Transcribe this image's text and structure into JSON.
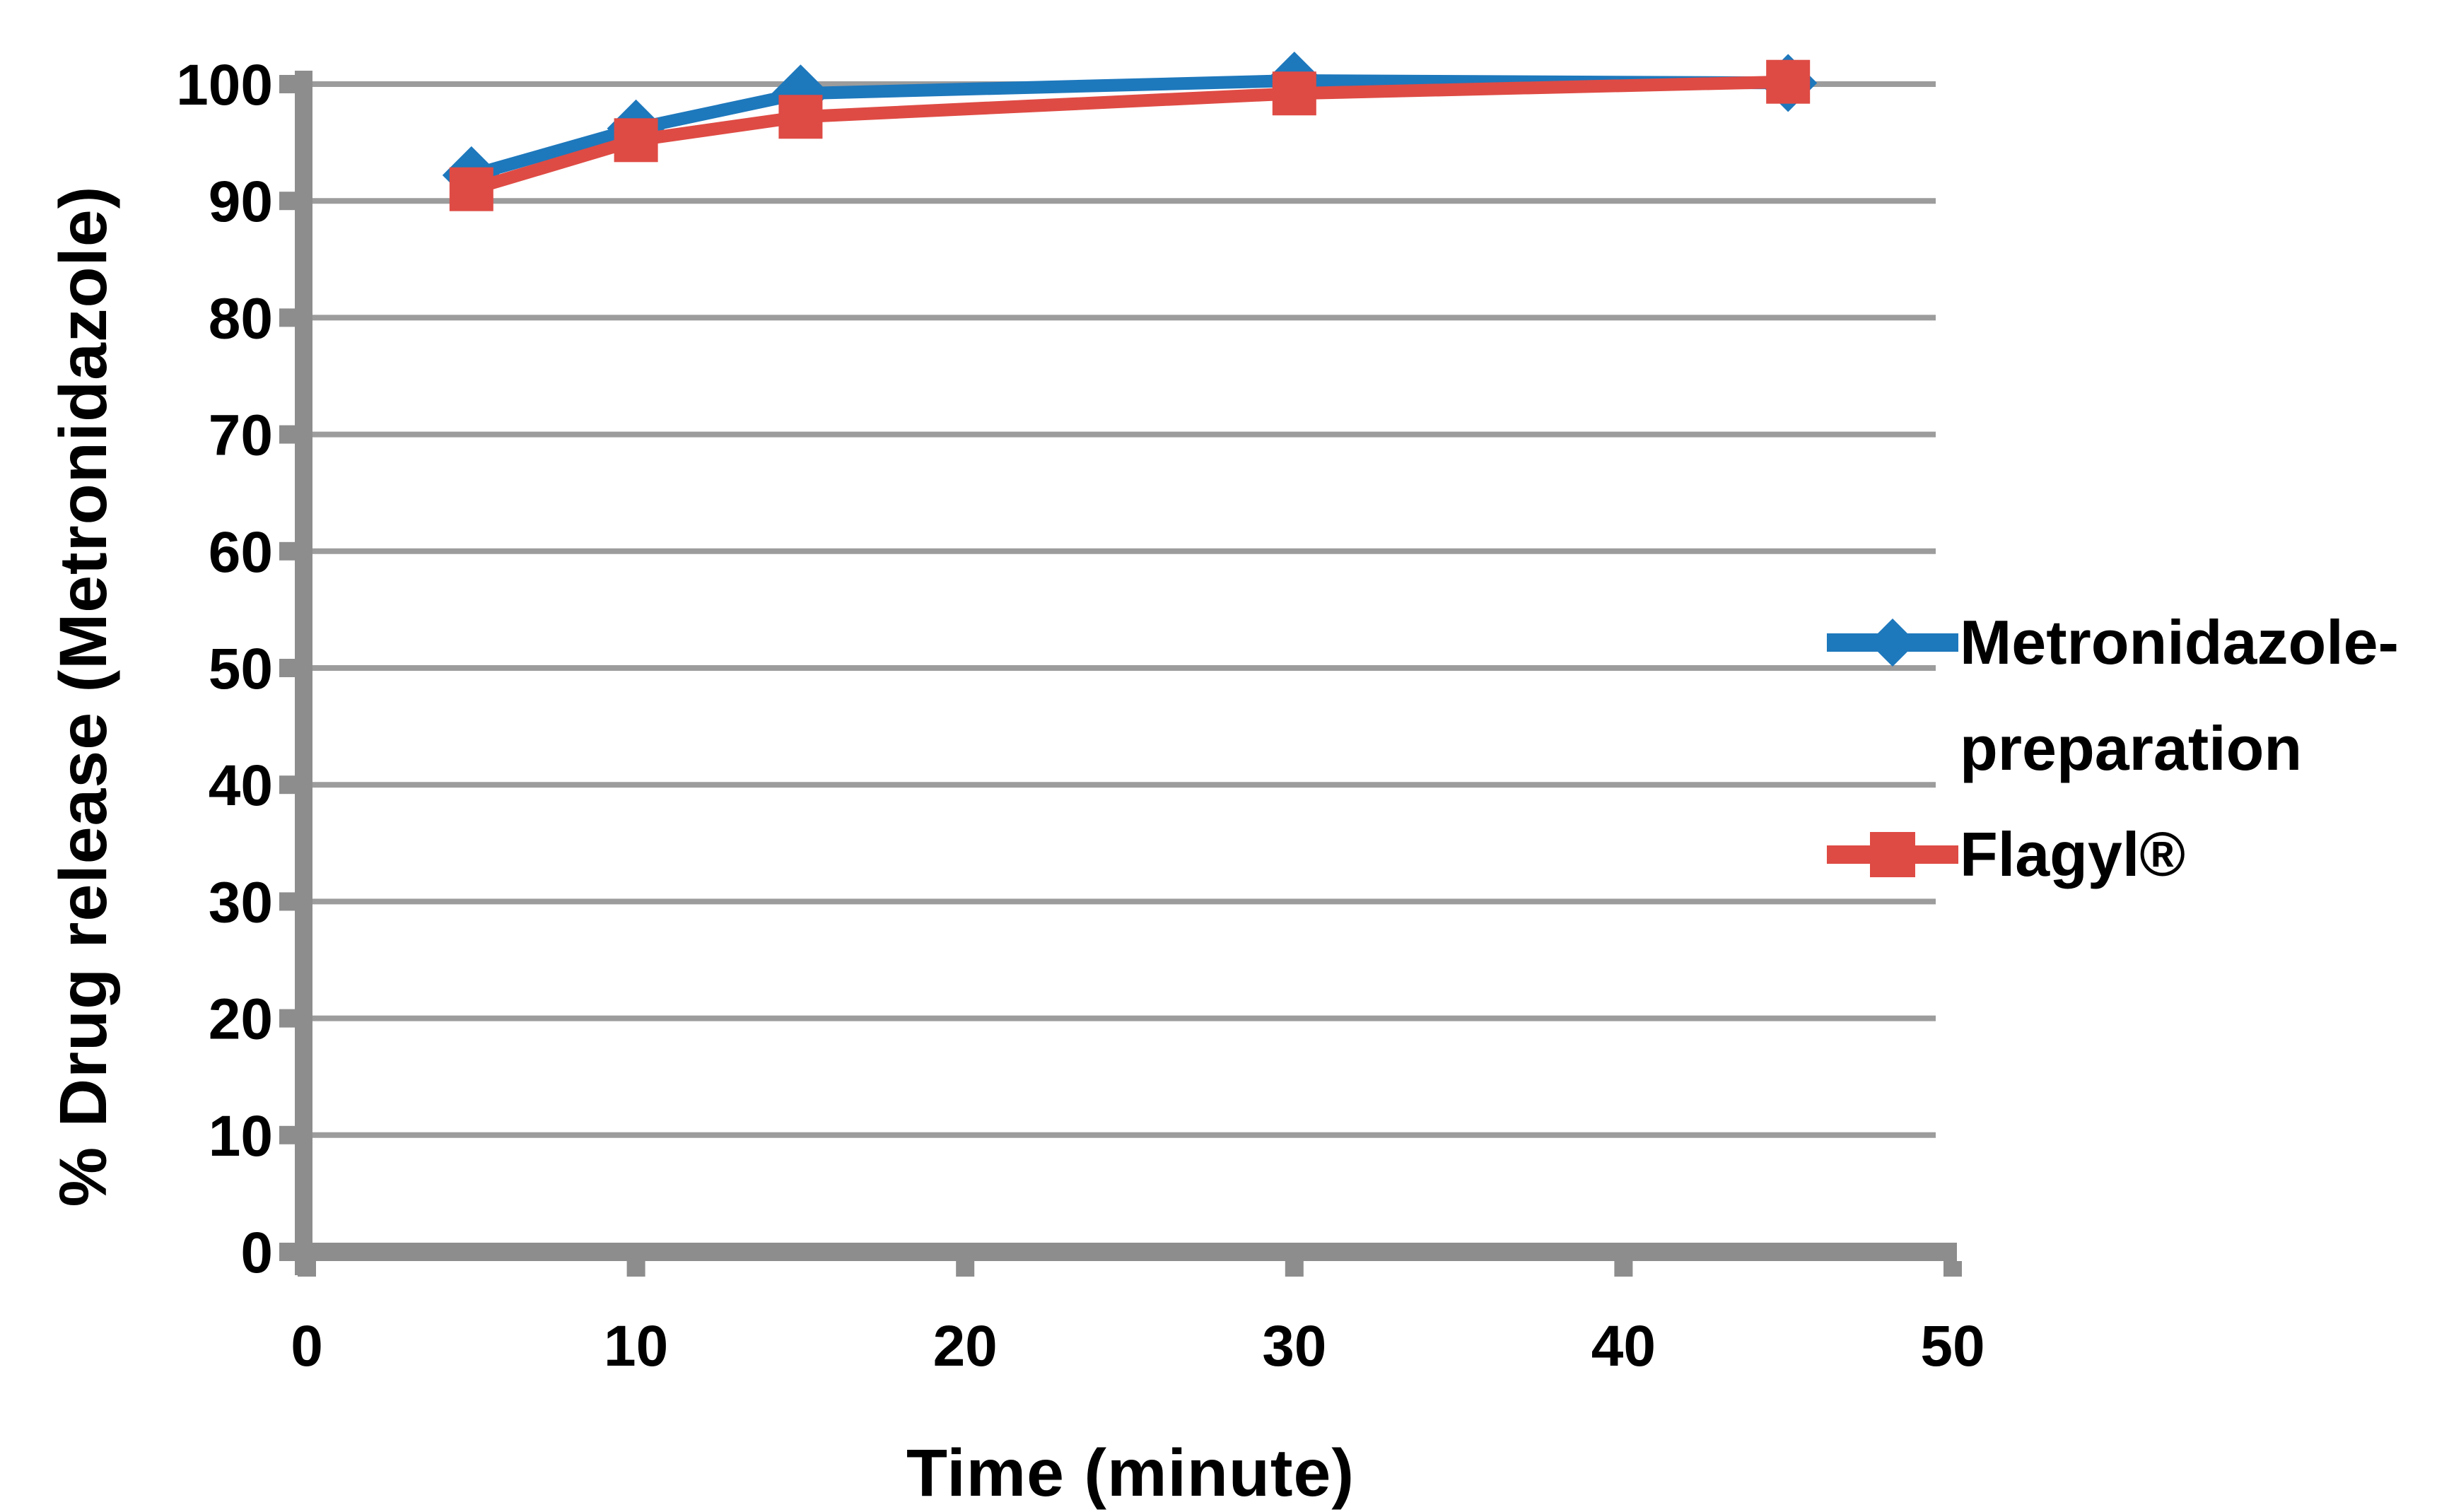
{
  "chart_data": {
    "type": "line",
    "title": "",
    "xlabel": "Time (minute)",
    "ylabel": "% Drug release (Metronidazole)",
    "x": [
      5,
      10,
      15,
      30,
      45
    ],
    "series": [
      {
        "name": "Metronidazole-preparation",
        "label": "Metronidazole-\npreparation",
        "marker": "diamond",
        "color": "#1E78BC",
        "values": [
          92.2,
          96.2,
          99.2,
          100.3,
          100.1
        ]
      },
      {
        "name": "Flagyl®",
        "label": "Flagyl®",
        "marker": "square",
        "color": "#DE4B44",
        "values": [
          91.0,
          95.2,
          97.2,
          99.2,
          100.2
        ]
      }
    ],
    "xlim": [
      0,
      50
    ],
    "ylim": [
      0,
      100
    ],
    "xticks": [
      0,
      10,
      20,
      30,
      40,
      50
    ],
    "yticks": [
      0,
      10,
      20,
      30,
      40,
      50,
      60,
      70,
      80,
      90,
      100
    ],
    "grid": true,
    "legend_position": "right-middle",
    "gridline_color": "#9C9C9C",
    "axis_color": "#8D8D8D",
    "text_color": "#000000",
    "background": "#FFFFFF"
  }
}
